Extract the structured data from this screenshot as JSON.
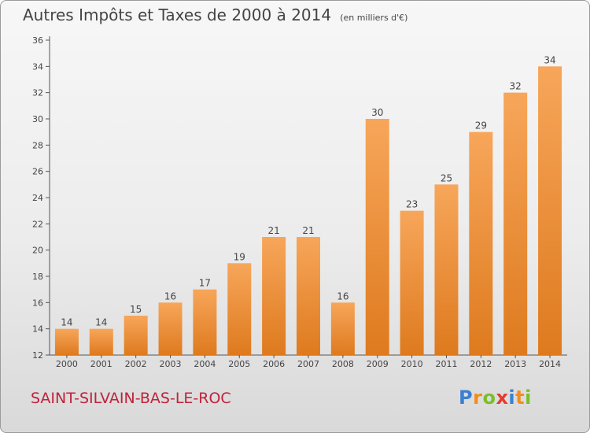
{
  "title": "Autres Impôts et Taxes de 2000 à 2014",
  "unit_note": "(en milliers d'€)",
  "commune": "SAINT-SILVAIN-BAS-LE-ROC",
  "logo": {
    "letters": [
      "P",
      "r",
      "o",
      "x",
      "i",
      "t",
      "i"
    ],
    "colors": [
      "#3b7fd0",
      "#f28c1e",
      "#7abf2a",
      "#e83a2f",
      "#3b7fd0",
      "#f28c1e",
      "#7abf2a"
    ]
  },
  "chart_data": {
    "type": "bar",
    "categories": [
      "2000",
      "2001",
      "2002",
      "2003",
      "2004",
      "2005",
      "2006",
      "2007",
      "2008",
      "2009",
      "2010",
      "2011",
      "2012",
      "2013",
      "2014"
    ],
    "values": [
      14,
      14,
      15,
      16,
      17,
      19,
      21,
      21,
      16,
      30,
      23,
      25,
      29,
      32,
      34
    ],
    "data_labels": [
      "14",
      "14",
      "15",
      "16",
      "17",
      "19",
      "21",
      "21",
      "16",
      "30",
      "23",
      "25",
      "29",
      "32",
      "34"
    ],
    "yticks": [
      12,
      14,
      16,
      18,
      20,
      22,
      24,
      26,
      28,
      30,
      32,
      34,
      36
    ],
    "ylim": [
      12,
      36
    ],
    "bar_color": "#f0923a",
    "grid": false
  }
}
